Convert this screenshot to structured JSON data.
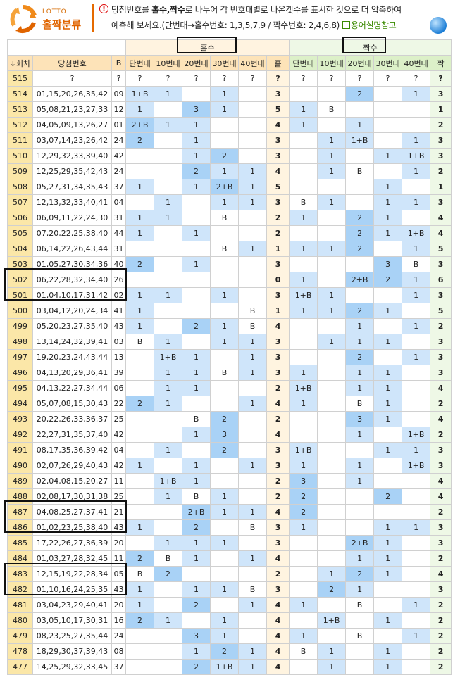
{
  "header": {
    "logo_small": "LOTTO",
    "logo_big": "홀짝분류",
    "info_glyph": "!",
    "desc_pre": "당첨번호를 ",
    "desc_bold": "홀수,짝수",
    "desc_post": "로 나누어 각 번호대별로 나온갯수를 표시한 것으로 더 압축하여",
    "desc2": "예측해 보세요.(단번대→홀수번호: 1,3,5,7,9 / 짝수번호: 2,4,6,8)",
    "help_link": "용어설명참고"
  },
  "table": {
    "group_odd": "홀수",
    "group_even": "짝수",
    "columns": [
      "↓회차",
      "당첨번호",
      "B",
      "단번대",
      "10번대",
      "20번대",
      "30번대",
      "40번대",
      "홀",
      "단번대",
      "10번대",
      "20번대",
      "30번대",
      "40번대",
      "짝"
    ],
    "rows": [
      [
        "515",
        "?",
        "?",
        "?",
        "?",
        "?",
        "?",
        "?",
        "?",
        "?",
        "?",
        "?",
        "?",
        "?",
        "?"
      ],
      [
        "514",
        "01,15,20,26,35,42",
        "09",
        "1+B",
        "1",
        "",
        "1",
        "",
        "3",
        "",
        "",
        "2",
        "",
        "1",
        "3"
      ],
      [
        "513",
        "05,08,21,23,27,33",
        "12",
        "1",
        "",
        "3",
        "1",
        "",
        "5",
        "1",
        "B",
        "",
        "",
        "",
        "1"
      ],
      [
        "512",
        "04,05,09,13,26,27",
        "01",
        "2+B",
        "1",
        "1",
        "",
        "",
        "4",
        "1",
        "",
        "1",
        "",
        "",
        "2"
      ],
      [
        "511",
        "03,07,14,23,26,42",
        "24",
        "2",
        "",
        "1",
        "",
        "",
        "3",
        "",
        "1",
        "1+B",
        "",
        "1",
        "3"
      ],
      [
        "510",
        "12,29,32,33,39,40",
        "42",
        "",
        "",
        "1",
        "2",
        "",
        "3",
        "",
        "1",
        "",
        "1",
        "1+B",
        "3"
      ],
      [
        "509",
        "12,25,29,35,42,43",
        "24",
        "",
        "",
        "2",
        "1",
        "1",
        "4",
        "",
        "1",
        "B",
        "",
        "1",
        "2"
      ],
      [
        "508",
        "05,27,31,34,35,43",
        "37",
        "1",
        "",
        "1",
        "2+B",
        "1",
        "5",
        "",
        "",
        "",
        "1",
        "",
        "1"
      ],
      [
        "507",
        "12,13,32,33,40,41",
        "04",
        "",
        "1",
        "",
        "1",
        "1",
        "3",
        "B",
        "1",
        "",
        "1",
        "1",
        "3"
      ],
      [
        "506",
        "06,09,11,22,24,30",
        "31",
        "1",
        "1",
        "",
        "B",
        "",
        "2",
        "1",
        "",
        "2",
        "1",
        "",
        "4"
      ],
      [
        "505",
        "07,20,22,25,38,40",
        "44",
        "1",
        "",
        "1",
        "",
        "",
        "2",
        "",
        "",
        "2",
        "1",
        "1+B",
        "4"
      ],
      [
        "504",
        "06,14,22,26,43,44",
        "31",
        "",
        "",
        "",
        "B",
        "1",
        "1",
        "1",
        "1",
        "2",
        "",
        "1",
        "5"
      ],
      [
        "503",
        "01,05,27,30,34,36",
        "40",
        "2",
        "",
        "1",
        "",
        "",
        "3",
        "",
        "",
        "",
        "3",
        "B",
        "3"
      ],
      [
        "502",
        "06,22,28,32,34,40",
        "26",
        "",
        "",
        "",
        "",
        "",
        "0",
        "1",
        "",
        "2+B",
        "2",
        "1",
        "6"
      ],
      [
        "501",
        "01,04,10,17,31,42",
        "02",
        "1",
        "1",
        "",
        "1",
        "",
        "3",
        "1+B",
        "1",
        "",
        "",
        "1",
        "3"
      ],
      [
        "500",
        "03,04,12,20,24,34",
        "41",
        "1",
        "",
        "",
        "",
        "B",
        "1",
        "1",
        "1",
        "2",
        "1",
        "",
        "5"
      ],
      [
        "499",
        "05,20,23,27,35,40",
        "43",
        "1",
        "",
        "2",
        "1",
        "B",
        "4",
        "",
        "",
        "1",
        "",
        "1",
        "2"
      ],
      [
        "498",
        "13,14,24,32,39,41",
        "03",
        "B",
        "1",
        "",
        "1",
        "1",
        "3",
        "",
        "1",
        "1",
        "1",
        "",
        "3"
      ],
      [
        "497",
        "19,20,23,24,43,44",
        "13",
        "",
        "1+B",
        "1",
        "",
        "1",
        "3",
        "",
        "",
        "2",
        "",
        "1",
        "3"
      ],
      [
        "496",
        "04,13,20,29,36,41",
        "39",
        "",
        "1",
        "1",
        "B",
        "1",
        "3",
        "1",
        "",
        "1",
        "1",
        "",
        "3"
      ],
      [
        "495",
        "04,13,22,27,34,44",
        "06",
        "",
        "1",
        "1",
        "",
        "",
        "2",
        "1+B",
        "",
        "1",
        "1",
        "",
        "4"
      ],
      [
        "494",
        "05,07,08,15,30,43",
        "22",
        "2",
        "1",
        "",
        "",
        "1",
        "4",
        "1",
        "",
        "B",
        "1",
        "",
        "2"
      ],
      [
        "493",
        "20,22,26,33,36,37",
        "25",
        "",
        "",
        "B",
        "2",
        "",
        "2",
        "",
        "",
        "3",
        "1",
        "",
        "4"
      ],
      [
        "492",
        "22,27,31,35,37,40",
        "42",
        "",
        "",
        "1",
        "3",
        "",
        "4",
        "",
        "",
        "1",
        "",
        "1+B",
        "2"
      ],
      [
        "491",
        "08,17,35,36,39,42",
        "04",
        "",
        "1",
        "",
        "2",
        "",
        "3",
        "1+B",
        "",
        "",
        "1",
        "1",
        "3"
      ],
      [
        "490",
        "02,07,26,29,40,43",
        "42",
        "1",
        "",
        "1",
        "",
        "1",
        "3",
        "1",
        "",
        "1",
        "",
        "1+B",
        "3"
      ],
      [
        "489",
        "02,04,08,15,20,27",
        "11",
        "",
        "1+B",
        "1",
        "",
        "",
        "2",
        "3",
        "",
        "1",
        "",
        "",
        "4"
      ],
      [
        "488",
        "02,08,17,30,31,38",
        "25",
        "",
        "1",
        "B",
        "1",
        "",
        "2",
        "2",
        "",
        "",
        "2",
        "",
        "4"
      ],
      [
        "487",
        "04,08,25,27,37,41",
        "21",
        "",
        "",
        "2+B",
        "1",
        "1",
        "4",
        "2",
        "",
        "",
        "",
        "",
        "2"
      ],
      [
        "486",
        "01,02,23,25,38,40",
        "43",
        "1",
        "",
        "2",
        "",
        "B",
        "3",
        "1",
        "",
        "",
        "1",
        "1",
        "3"
      ],
      [
        "485",
        "17,22,26,27,36,39",
        "20",
        "",
        "1",
        "1",
        "1",
        "",
        "3",
        "",
        "",
        "2+B",
        "1",
        "",
        "3"
      ],
      [
        "484",
        "01,03,27,28,32,45",
        "11",
        "2",
        "B",
        "1",
        "",
        "1",
        "4",
        "",
        "",
        "1",
        "1",
        "",
        "2"
      ],
      [
        "483",
        "12,15,19,22,28,34",
        "05",
        "B",
        "2",
        "",
        "",
        "",
        "2",
        "",
        "1",
        "2",
        "1",
        "",
        "4"
      ],
      [
        "482",
        "01,10,16,24,25,35",
        "43",
        "1",
        "",
        "1",
        "1",
        "B",
        "3",
        "",
        "2",
        "1",
        "",
        "",
        "3"
      ],
      [
        "481",
        "03,04,23,29,40,41",
        "20",
        "1",
        "",
        "2",
        "",
        "1",
        "4",
        "1",
        "",
        "B",
        "",
        "1",
        "2"
      ],
      [
        "480",
        "03,05,10,17,30,31",
        "16",
        "2",
        "1",
        "",
        "1",
        "",
        "4",
        "",
        "1+B",
        "",
        "1",
        "",
        "2"
      ],
      [
        "479",
        "08,23,25,27,35,44",
        "24",
        "",
        "",
        "3",
        "1",
        "",
        "4",
        "1",
        "",
        "B",
        "",
        "1",
        "2"
      ],
      [
        "478",
        "18,29,30,37,39,43",
        "08",
        "",
        "",
        "1",
        "2",
        "1",
        "4",
        "B",
        "1",
        "",
        "1",
        "",
        "2"
      ],
      [
        "477",
        "14,25,29,32,33,45",
        "37",
        "",
        "",
        "2",
        "1+B",
        "1",
        "4",
        "",
        "1",
        "",
        "1",
        "",
        "2"
      ]
    ]
  },
  "highlight": {
    "light_color": "#cfe5fa",
    "dark_color": "#a9d2f6"
  }
}
